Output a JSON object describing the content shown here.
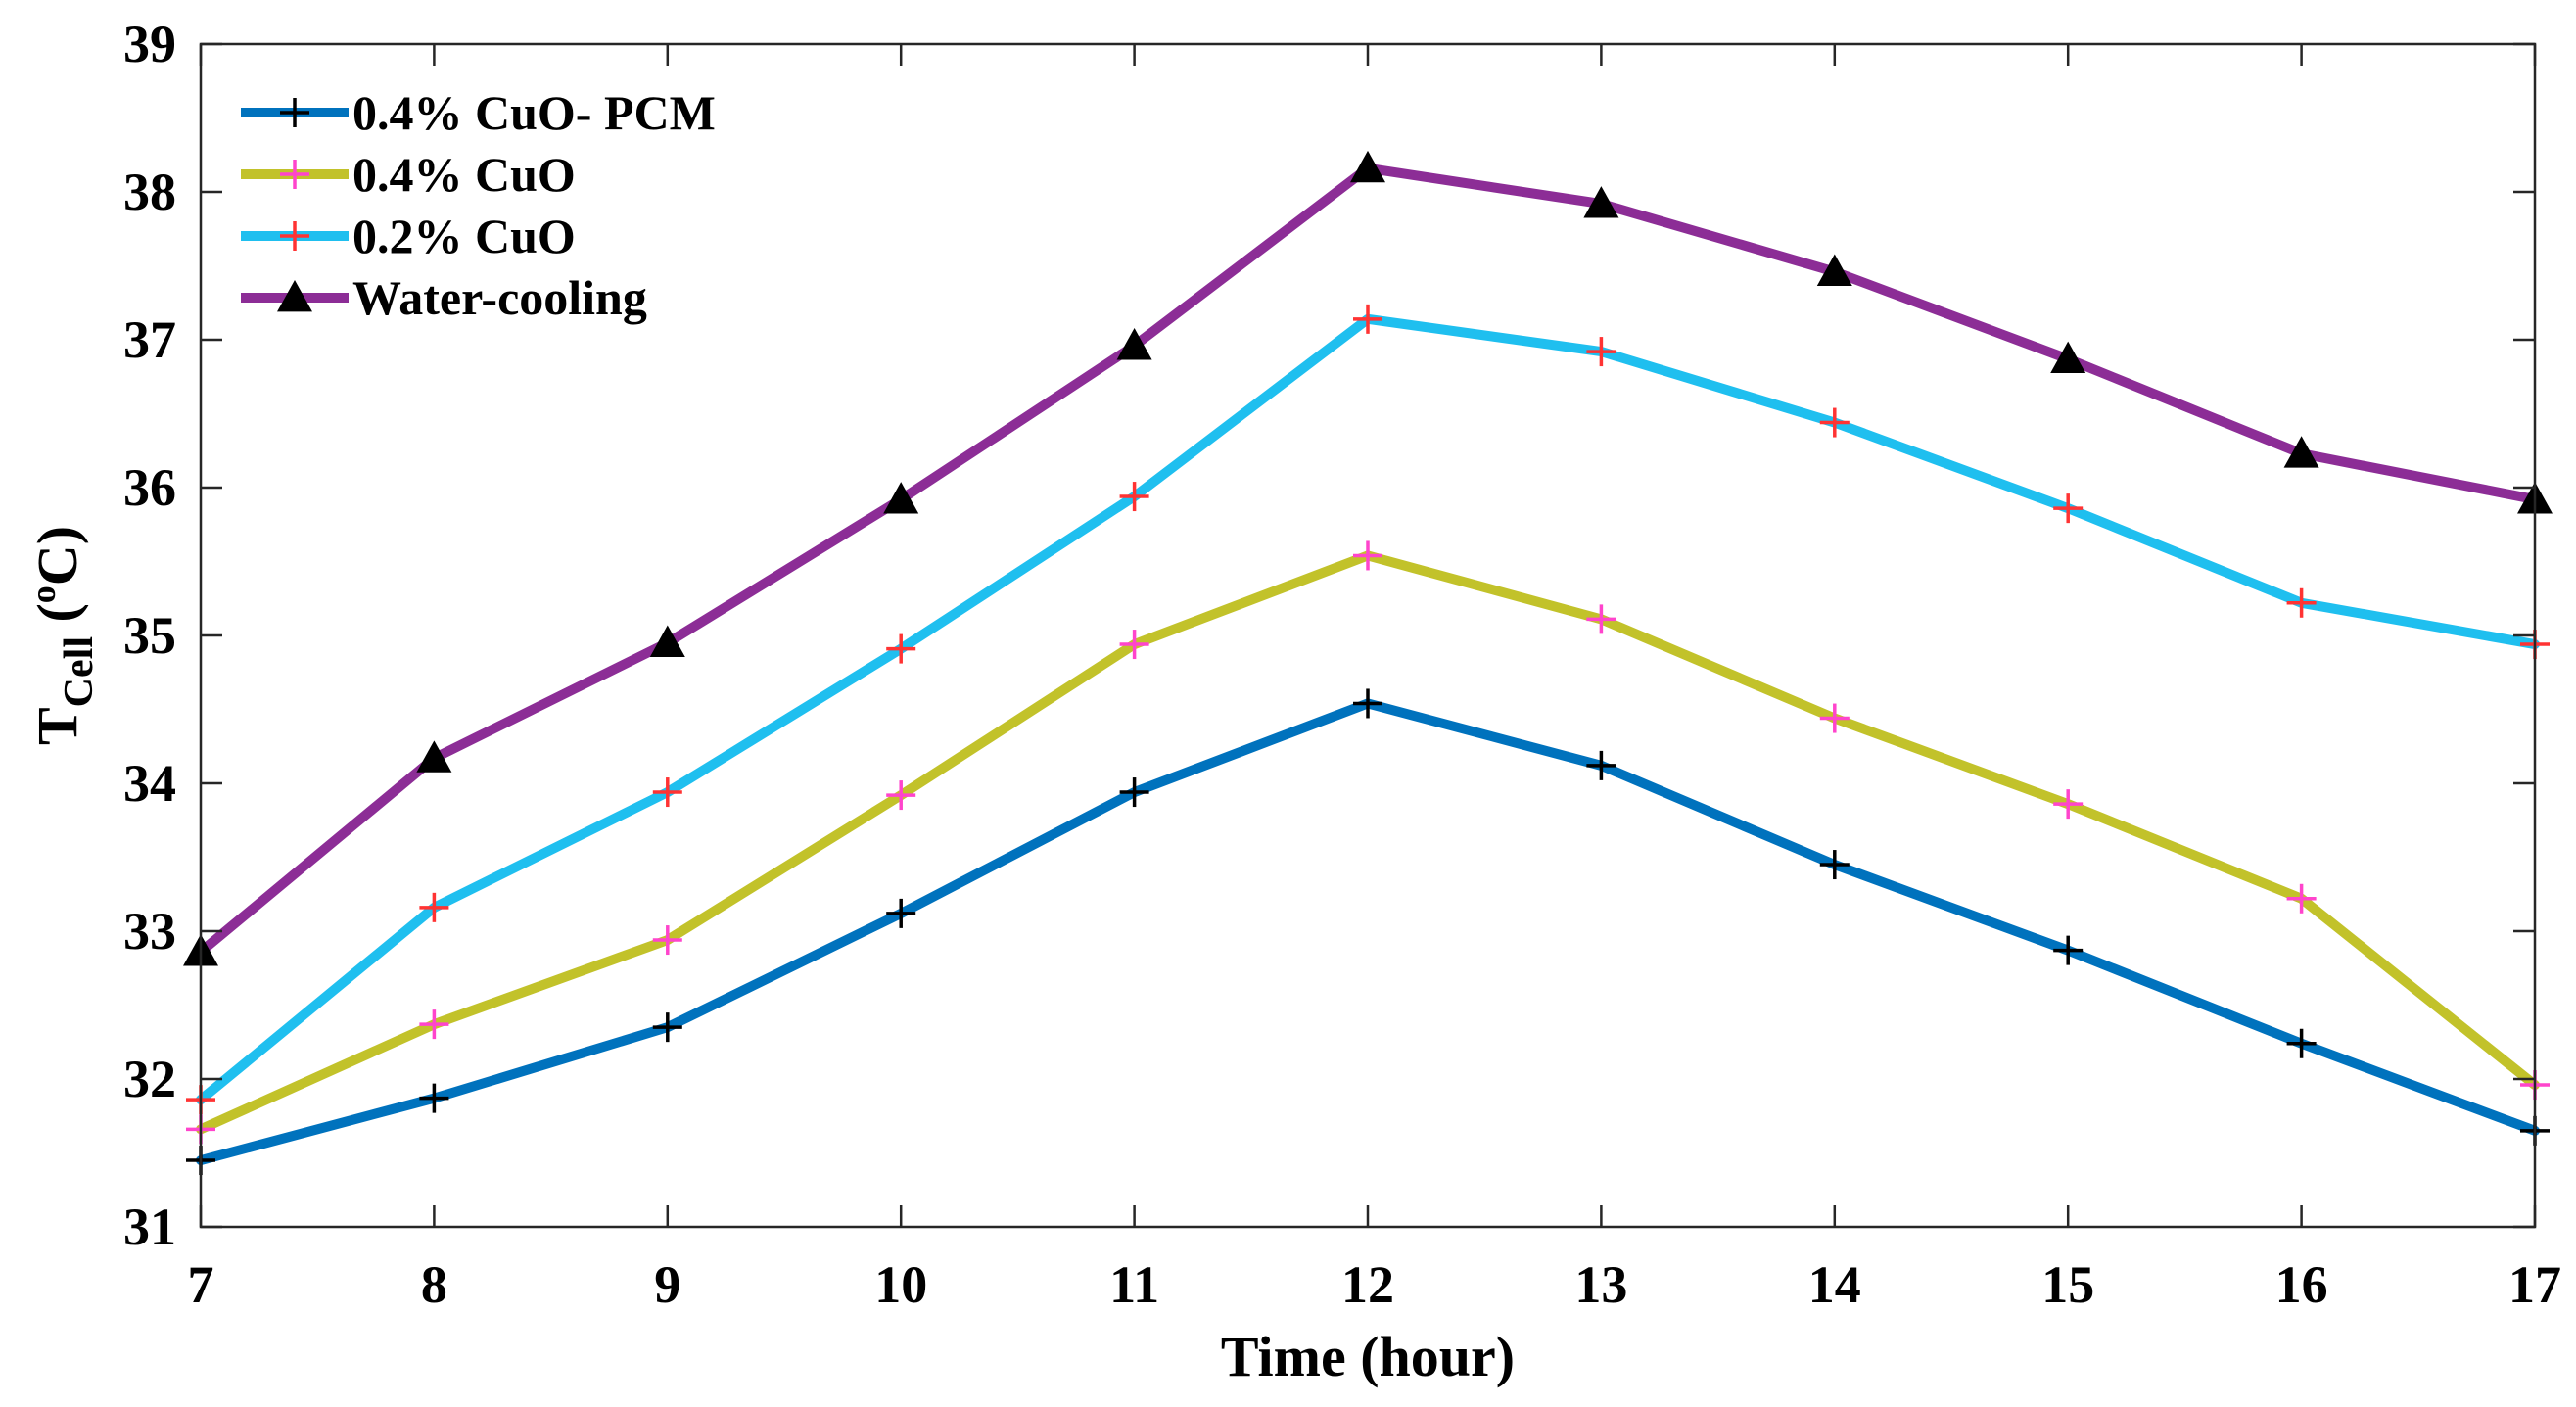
{
  "chart_data": {
    "type": "line",
    "title": "",
    "xlabel": "Time (hour)",
    "ylabel": {
      "main": "T",
      "subscript": "Cell",
      "unit_open": " (",
      "unit_sup": "o",
      "unit_close": "C)"
    },
    "x": [
      7,
      8,
      9,
      10,
      11,
      12,
      13,
      14,
      15,
      16,
      17
    ],
    "xlim": [
      7,
      17
    ],
    "ylim": [
      31,
      39
    ],
    "xticks": [
      7,
      8,
      9,
      10,
      11,
      12,
      13,
      14,
      15,
      16,
      17
    ],
    "yticks": [
      31,
      32,
      33,
      34,
      35,
      36,
      37,
      38,
      39
    ],
    "grid": false,
    "legend_position": "top-left",
    "series": [
      {
        "name": "0.4% CuO- PCM",
        "color": "#0072BD",
        "marker": "plus",
        "marker_color": "#000000",
        "values": [
          31.45,
          31.87,
          32.35,
          33.12,
          33.94,
          34.54,
          34.12,
          33.45,
          32.87,
          32.24,
          31.65
        ]
      },
      {
        "name": "0.4% CuO",
        "color": "#C2C22A",
        "marker": "plus",
        "marker_color": "#FF44CC",
        "values": [
          31.66,
          32.37,
          32.94,
          33.92,
          34.94,
          35.54,
          35.11,
          34.44,
          33.86,
          33.22,
          31.96
        ]
      },
      {
        "name": "0.2% CuO",
        "color": "#1FBFEF",
        "marker": "plus",
        "marker_color": "#FF3333",
        "values": [
          31.86,
          33.16,
          33.94,
          34.91,
          35.94,
          37.14,
          36.92,
          36.44,
          35.86,
          35.22,
          34.94
        ]
      },
      {
        "name": "Water-cooling",
        "color": "#8C2D96",
        "marker": "triangle",
        "marker_color": "#000000",
        "values": [
          32.86,
          34.17,
          34.95,
          35.92,
          36.96,
          38.16,
          37.92,
          37.46,
          36.87,
          36.23,
          35.92
        ]
      }
    ]
  }
}
